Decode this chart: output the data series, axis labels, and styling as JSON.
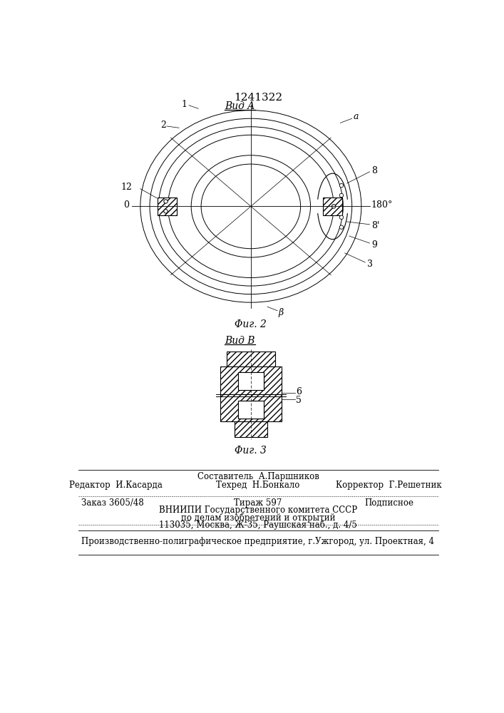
{
  "title": "1241322",
  "fig2_label": "Φиг. 2",
  "fig3_label": "Φиг. 3",
  "vida_label": "Вид A",
  "vidb_label": "Вид B",
  "bg_color": "#ffffff",
  "line_color": "#000000",
  "footer_line0_center": "Составитель  А.Паршников",
  "footer_line1_left": "Редактор  И.Касарда",
  "footer_line1_center": "Техред  Н.Бонкало",
  "footer_line1_right": "Корректор  Г.Решетник",
  "footer_line2_left": "Заказ 3605/48",
  "footer_line2_center": "Тираж 597",
  "footer_line2_right": "Подписное",
  "footer_line3": "ВНИИПИ Государственного комитета СССР",
  "footer_line4": "по делам изобретений и открытий",
  "footer_line5": "113035, Москва, Ж-35, Раушская наб., д. 4/5",
  "footer_line6": "Производственно-полиграфическое предприятие, г.Ужгород, ул. Проектная, 4"
}
